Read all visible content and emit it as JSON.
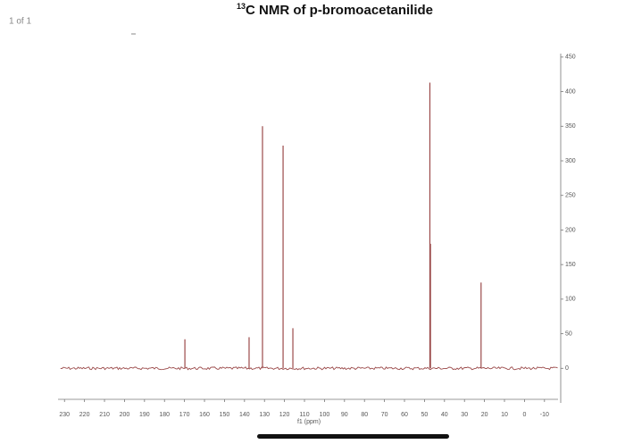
{
  "page_indicator": "1 of 1",
  "chart_data": {
    "type": "stick",
    "title_superscript": "13",
    "title": "C NMR of p-bromoacetanilide",
    "x_label": "f1 (ppm)",
    "x": [
      169.8,
      137.7,
      131,
      120.7,
      115.8,
      47.3,
      47.0,
      21.7
    ],
    "series": [
      {
        "color": "#9b4a4a",
        "values": [
          42,
          45,
          350,
          322,
          58,
          413,
          180,
          124
        ]
      }
    ],
    "xlim": [
      231,
      -15
    ],
    "xticks": [
      230,
      220,
      210,
      200,
      190,
      180,
      170,
      160,
      150,
      140,
      130,
      120,
      110,
      100,
      90,
      80,
      70,
      60,
      50,
      40,
      30,
      20,
      10,
      0,
      -10
    ],
    "ylim": [
      -50,
      455
    ],
    "yticks": [
      0,
      50,
      100,
      150,
      200,
      250,
      300,
      350,
      400,
      450
    ]
  }
}
